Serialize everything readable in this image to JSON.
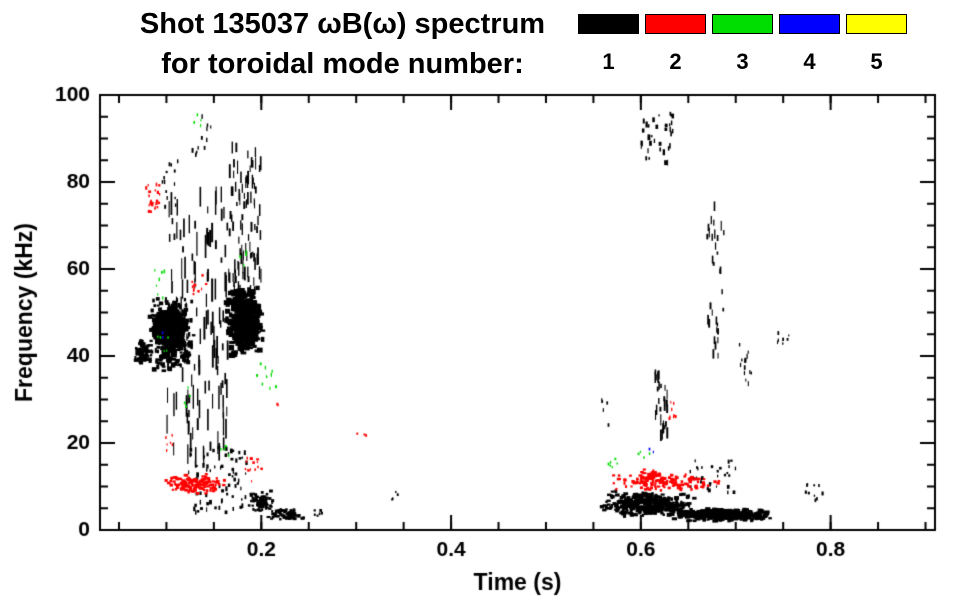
{
  "header": {
    "title_line1": "Shot 135037 ωB(ω) spectrum",
    "title_line2": "for toroidal mode number:"
  },
  "legend": {
    "entries": [
      {
        "label": "1",
        "color": "#000000"
      },
      {
        "label": "2",
        "color": "#ff0000"
      },
      {
        "label": "3",
        "color": "#00dd00"
      },
      {
        "label": "4",
        "color": "#0000ff"
      },
      {
        "label": "5",
        "color": "#ffff00"
      }
    ]
  },
  "chart_data": {
    "type": "scatter",
    "title": "Shot 135037 ωB(ω) spectrum for toroidal mode number: 1 2 3 4 5",
    "xlabel": "Time (s)",
    "ylabel": "Frequency (kHz)",
    "xlim": [
      0.03,
      0.91
    ],
    "ylim": [
      0,
      100
    ],
    "xticks": [
      0.2,
      0.4,
      0.6,
      0.8
    ],
    "xtick_labels": [
      "0.2",
      "0.4",
      "0.6",
      "0.8"
    ],
    "x_minor_step": 0.05,
    "yticks": [
      0,
      20,
      40,
      60,
      80,
      100
    ],
    "ytick_labels": [
      "0",
      "20",
      "40",
      "60",
      "80",
      "100"
    ],
    "y_minor_step": 5,
    "grid": false,
    "legend_position": "top-right",
    "frame_color": "#000000",
    "series": [
      {
        "name": "n=1",
        "mode": 1,
        "color": "#000000",
        "clusters": [
          {
            "t": [
              0.065,
              0.085
            ],
            "f": [
              38,
              44
            ],
            "n": 80,
            "w": [
              2,
              5
            ],
            "h": [
              2,
              4
            ],
            "bias": true
          },
          {
            "t": [
              0.08,
              0.13
            ],
            "f": [
              36,
              54
            ],
            "n": 420,
            "w": [
              2,
              5
            ],
            "h": [
              2,
              5
            ],
            "bias": true
          },
          {
            "t": [
              0.088,
              0.118
            ],
            "f": [
              42,
              51
            ],
            "n": 220,
            "w": [
              4,
              9
            ],
            "h": [
              3,
              7
            ],
            "bias": true
          },
          {
            "t": [
              0.1,
              0.165
            ],
            "f": [
              14,
              78
            ],
            "n": 130,
            "w": [
              1,
              2
            ],
            "h": [
              5,
              24
            ],
            "bias": false
          },
          {
            "t": [
              0.162,
              0.202
            ],
            "f": [
              40,
              56
            ],
            "n": 420,
            "w": [
              3,
              7
            ],
            "h": [
              2,
              6
            ],
            "bias": true
          },
          {
            "t": [
              0.165,
              0.2
            ],
            "f": [
              55,
              88
            ],
            "n": 90,
            "w": [
              1,
              2
            ],
            "h": [
              4,
              14
            ],
            "bias": false
          },
          {
            "t": [
              0.125,
              0.148
            ],
            "f": [
              86,
              96
            ],
            "n": 12,
            "w": [
              1,
              2
            ],
            "h": [
              2,
              5
            ],
            "bias": false
          },
          {
            "t": [
              0.095,
              0.112
            ],
            "f": [
              74,
              85
            ],
            "n": 14,
            "w": [
              1,
              2
            ],
            "h": [
              2,
              5
            ],
            "bias": false
          },
          {
            "t": [
              0.118,
              0.185
            ],
            "f": [
              4,
              19
            ],
            "n": 70,
            "w": [
              1,
              3
            ],
            "h": [
              2,
              5
            ],
            "bias": false
          },
          {
            "t": [
              0.185,
              0.215
            ],
            "f": [
              4,
              9
            ],
            "n": 80,
            "w": [
              2,
              4
            ],
            "h": [
              2,
              3
            ],
            "bias": true
          },
          {
            "t": [
              0.205,
              0.248
            ],
            "f": [
              2,
              5
            ],
            "n": 70,
            "w": [
              2,
              4
            ],
            "h": [
              2,
              3
            ],
            "bias": true
          },
          {
            "t": [
              0.255,
              0.265
            ],
            "f": [
              3,
              5
            ],
            "n": 6,
            "w": [
              1,
              3
            ],
            "h": [
              2,
              3
            ],
            "bias": false
          },
          {
            "t": [
              0.335,
              0.345
            ],
            "f": [
              7,
              9
            ],
            "n": 4,
            "w": [
              1,
              2
            ],
            "h": [
              2,
              3
            ],
            "bias": false
          },
          {
            "t": [
              0.555,
              0.66
            ],
            "f": [
              3,
              9
            ],
            "n": 380,
            "w": [
              2,
              5
            ],
            "h": [
              2,
              4
            ],
            "bias": true
          },
          {
            "t": [
              0.63,
              0.742
            ],
            "f": [
              2,
              5
            ],
            "n": 320,
            "w": [
              3,
              6
            ],
            "h": [
              2,
              4
            ],
            "bias": true
          },
          {
            "t": [
              0.6,
              0.636
            ],
            "f": [
              84,
              96
            ],
            "n": 35,
            "w": [
              1,
              3
            ],
            "h": [
              2,
              6
            ],
            "bias": false
          },
          {
            "t": [
              0.615,
              0.628
            ],
            "f": [
              20,
              37
            ],
            "n": 28,
            "w": [
              1,
              2
            ],
            "h": [
              4,
              12
            ],
            "bias": false
          },
          {
            "t": [
              0.67,
              0.688
            ],
            "f": [
              40,
              76
            ],
            "n": 32,
            "w": [
              1,
              2
            ],
            "h": [
              3,
              10
            ],
            "bias": false
          },
          {
            "t": [
              0.7,
              0.722
            ],
            "f": [
              33,
              47
            ],
            "n": 14,
            "w": [
              1,
              2
            ],
            "h": [
              2,
              5
            ],
            "bias": false
          },
          {
            "t": [
              0.744,
              0.757
            ],
            "f": [
              40,
              46
            ],
            "n": 7,
            "w": [
              1,
              2
            ],
            "h": [
              2,
              4
            ],
            "bias": false
          },
          {
            "t": [
              0.773,
              0.792
            ],
            "f": [
              5,
              11
            ],
            "n": 10,
            "w": [
              1,
              3
            ],
            "h": [
              2,
              4
            ],
            "bias": false
          },
          {
            "t": [
              0.648,
              0.7
            ],
            "f": [
              8,
              16
            ],
            "n": 30,
            "w": [
              1,
              3
            ],
            "h": [
              2,
              4
            ],
            "bias": false
          },
          {
            "t": [
              0.558,
              0.572
            ],
            "f": [
              24,
              30
            ],
            "n": 5,
            "w": [
              1,
              2
            ],
            "h": [
              2,
              4
            ],
            "bias": false
          }
        ]
      },
      {
        "name": "n=2",
        "mode": 2,
        "color": "#ff0000",
        "clusters": [
          {
            "t": [
              0.098,
              0.163
            ],
            "f": [
              8,
              13
            ],
            "n": 140,
            "w": [
              2,
              4
            ],
            "h": [
              2,
              3
            ],
            "bias": true
          },
          {
            "t": [
              0.078,
              0.093
            ],
            "f": [
              73,
              80
            ],
            "n": 22,
            "w": [
              1,
              3
            ],
            "h": [
              2,
              4
            ],
            "bias": false
          },
          {
            "t": [
              0.126,
              0.142
            ],
            "f": [
              54,
              59
            ],
            "n": 10,
            "w": [
              1,
              3
            ],
            "h": [
              2,
              3
            ],
            "bias": false
          },
          {
            "t": [
              0.183,
              0.203
            ],
            "f": [
              11,
              17
            ],
            "n": 14,
            "w": [
              1,
              3
            ],
            "h": [
              2,
              3
            ],
            "bias": false
          },
          {
            "t": [
              0.565,
              0.688
            ],
            "f": [
              9,
              13
            ],
            "n": 130,
            "w": [
              2,
              4
            ],
            "h": [
              2,
              3
            ],
            "bias": true
          },
          {
            "t": [
              0.595,
              0.625
            ],
            "f": [
              11,
              14
            ],
            "n": 45,
            "w": [
              2,
              4
            ],
            "h": [
              2,
              3
            ],
            "bias": true
          },
          {
            "t": [
              0.627,
              0.642
            ],
            "f": [
              24,
              30
            ],
            "n": 8,
            "w": [
              1,
              2
            ],
            "h": [
              2,
              4
            ],
            "bias": false
          },
          {
            "t": [
              0.3,
              0.312
            ],
            "f": [
              21,
              23
            ],
            "n": 3,
            "w": [
              1,
              2
            ],
            "h": [
              2,
              3
            ],
            "bias": false
          },
          {
            "t": [
              0.098,
              0.112
            ],
            "f": [
              18,
              22
            ],
            "n": 6,
            "w": [
              1,
              2
            ],
            "h": [
              2,
              3
            ],
            "bias": false
          },
          {
            "t": [
              0.213,
              0.22
            ],
            "f": [
              27,
              29
            ],
            "n": 2,
            "w": [
              1,
              2
            ],
            "h": [
              2,
              3
            ],
            "bias": false
          }
        ]
      },
      {
        "name": "n=3",
        "mode": 3,
        "color": "#00dd00",
        "clusters": [
          {
            "t": [
              0.128,
              0.137
            ],
            "f": [
              92,
              96
            ],
            "n": 4,
            "w": [
              1,
              2
            ],
            "h": [
              2,
              4
            ],
            "bias": false
          },
          {
            "t": [
              0.087,
              0.099
            ],
            "f": [
              53,
              60
            ],
            "n": 7,
            "w": [
              1,
              2
            ],
            "h": [
              2,
              4
            ],
            "bias": false
          },
          {
            "t": [
              0.09,
              0.102
            ],
            "f": [
              41,
              47
            ],
            "n": 5,
            "w": [
              1,
              2
            ],
            "h": [
              2,
              3
            ],
            "bias": false
          },
          {
            "t": [
              0.154,
              0.166
            ],
            "f": [
              16,
              20
            ],
            "n": 5,
            "w": [
              1,
              2
            ],
            "h": [
              2,
              3
            ],
            "bias": false
          },
          {
            "t": [
              0.19,
              0.218
            ],
            "f": [
              32,
              40
            ],
            "n": 9,
            "w": [
              1,
              2
            ],
            "h": [
              2,
              4
            ],
            "bias": false
          },
          {
            "t": [
              0.563,
              0.578
            ],
            "f": [
              14,
              17
            ],
            "n": 6,
            "w": [
              1,
              2
            ],
            "h": [
              2,
              3
            ],
            "bias": false
          },
          {
            "t": [
              0.597,
              0.61
            ],
            "f": [
              16,
              18
            ],
            "n": 4,
            "w": [
              1,
              2
            ],
            "h": [
              2,
              3
            ],
            "bias": false
          },
          {
            "t": [
              0.175,
              0.186
            ],
            "f": [
              60,
              65
            ],
            "n": 4,
            "w": [
              1,
              2
            ],
            "h": [
              2,
              4
            ],
            "bias": false
          },
          {
            "t": [
              0.118,
              0.126
            ],
            "f": [
              28,
              33
            ],
            "n": 4,
            "w": [
              1,
              2
            ],
            "h": [
              2,
              3
            ],
            "bias": false
          }
        ]
      },
      {
        "name": "n=4",
        "mode": 4,
        "color": "#0000ff",
        "clusters": [
          {
            "t": [
              0.093,
              0.098
            ],
            "f": [
              43,
              46
            ],
            "n": 2,
            "w": [
              1,
              2
            ],
            "h": [
              2,
              3
            ],
            "bias": false
          },
          {
            "t": [
              0.609,
              0.616
            ],
            "f": [
              17,
              19
            ],
            "n": 2,
            "w": [
              1,
              2
            ],
            "h": [
              2,
              3
            ],
            "bias": false
          }
        ]
      },
      {
        "name": "n=5",
        "mode": 5,
        "color": "#ffff00",
        "clusters": []
      }
    ]
  }
}
